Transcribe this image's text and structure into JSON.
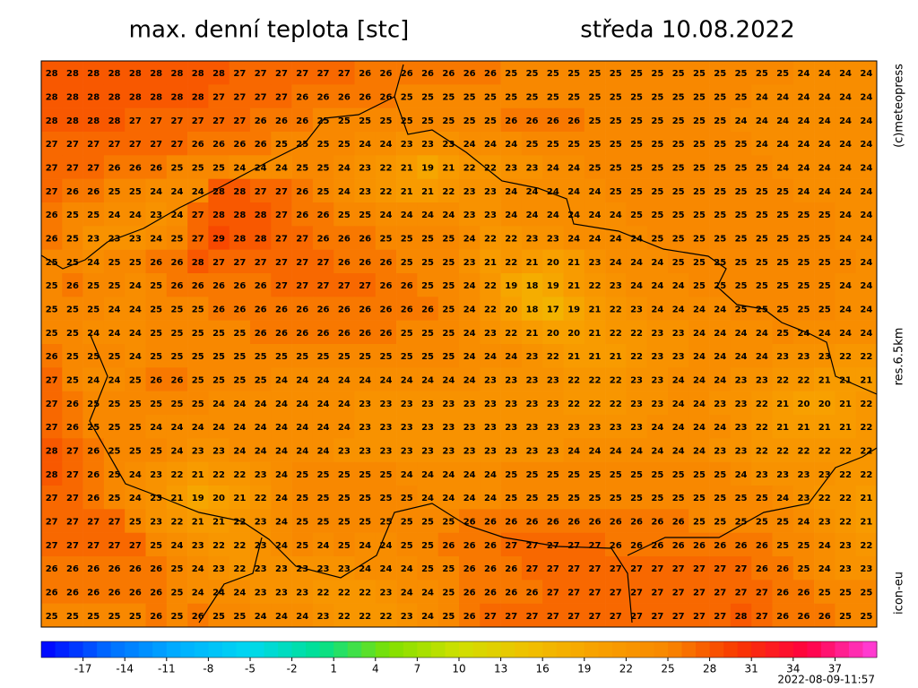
{
  "header": {
    "title": "max. denní teplota [stc]",
    "date": "středa 10.08.2022"
  },
  "side": {
    "copyright": "(c)meteopress",
    "resolution": "res.6.5km",
    "model": "icon-eu"
  },
  "timestamp": "2022-08-09-11:57",
  "colorbar": {
    "range": [
      -20,
      40
    ],
    "ticks": [
      -17,
      -14,
      -11,
      -8,
      -5,
      -2,
      1,
      4,
      7,
      10,
      13,
      16,
      19,
      22,
      25,
      28,
      31,
      34,
      37
    ],
    "colors": [
      "#0000ff",
      "#0070ff",
      "#00b0ff",
      "#00d8f0",
      "#00e090",
      "#80e000",
      "#d0e000",
      "#f0c000",
      "#f8a000",
      "#f88800",
      "#f83800",
      "#ff0040",
      "#ff40e0"
    ]
  },
  "map": {
    "rows": [
      [
        28,
        28,
        28,
        28,
        28,
        28,
        28,
        28,
        28,
        27,
        27,
        27,
        27,
        27,
        27,
        26,
        26,
        26,
        26,
        26,
        26,
        26,
        25,
        25,
        25,
        25,
        25,
        25,
        25,
        25,
        25,
        25,
        25,
        25,
        25,
        25,
        24,
        24,
        24,
        24
      ],
      [
        28,
        28,
        28,
        28,
        28,
        28,
        28,
        28,
        27,
        27,
        27,
        27,
        26,
        26,
        26,
        26,
        26,
        25,
        25,
        25,
        25,
        25,
        25,
        25,
        25,
        25,
        25,
        25,
        25,
        25,
        25,
        25,
        25,
        25,
        24,
        24,
        24,
        24,
        24,
        24
      ],
      [
        28,
        28,
        28,
        28,
        27,
        27,
        27,
        27,
        27,
        27,
        26,
        26,
        26,
        25,
        25,
        25,
        25,
        25,
        25,
        25,
        25,
        25,
        26,
        26,
        26,
        26,
        25,
        25,
        25,
        25,
        25,
        25,
        25,
        24,
        24,
        24,
        24,
        24,
        24,
        24
      ],
      [
        27,
        27,
        27,
        27,
        27,
        27,
        27,
        26,
        26,
        26,
        26,
        25,
        25,
        25,
        25,
        24,
        24,
        23,
        23,
        23,
        24,
        24,
        24,
        25,
        25,
        25,
        25,
        25,
        25,
        25,
        25,
        25,
        25,
        25,
        24,
        24,
        24,
        24,
        24,
        24
      ],
      [
        27,
        27,
        27,
        26,
        26,
        26,
        25,
        25,
        25,
        24,
        24,
        24,
        25,
        25,
        24,
        23,
        22,
        21,
        19,
        21,
        22,
        22,
        23,
        23,
        24,
        24,
        25,
        25,
        25,
        25,
        25,
        25,
        25,
        25,
        25,
        24,
        24,
        24,
        24,
        24
      ],
      [
        27,
        26,
        26,
        25,
        25,
        24,
        24,
        24,
        28,
        28,
        27,
        27,
        26,
        25,
        24,
        23,
        22,
        21,
        21,
        22,
        23,
        23,
        24,
        24,
        24,
        24,
        24,
        25,
        25,
        25,
        25,
        25,
        25,
        25,
        25,
        25,
        24,
        24,
        24,
        24
      ],
      [
        26,
        25,
        25,
        24,
        24,
        23,
        24,
        27,
        28,
        28,
        28,
        27,
        26,
        26,
        25,
        25,
        24,
        24,
        24,
        24,
        23,
        23,
        24,
        24,
        24,
        24,
        24,
        24,
        25,
        25,
        25,
        25,
        25,
        25,
        25,
        25,
        25,
        25,
        24,
        24
      ],
      [
        26,
        25,
        23,
        23,
        23,
        24,
        25,
        27,
        29,
        28,
        28,
        27,
        27,
        26,
        26,
        26,
        25,
        25,
        25,
        25,
        24,
        22,
        22,
        23,
        23,
        24,
        24,
        24,
        24,
        25,
        25,
        25,
        25,
        25,
        25,
        25,
        25,
        25,
        24,
        24
      ],
      [
        25,
        25,
        24,
        25,
        25,
        26,
        26,
        28,
        27,
        27,
        27,
        27,
        27,
        27,
        26,
        26,
        26,
        25,
        25,
        25,
        23,
        21,
        22,
        21,
        20,
        21,
        23,
        24,
        24,
        24,
        25,
        25,
        25,
        25,
        25,
        25,
        25,
        25,
        25,
        24
      ],
      [
        25,
        26,
        25,
        25,
        24,
        25,
        26,
        26,
        26,
        26,
        26,
        27,
        27,
        27,
        27,
        27,
        26,
        26,
        25,
        25,
        24,
        22,
        19,
        18,
        19,
        21,
        22,
        23,
        24,
        24,
        24,
        25,
        25,
        25,
        25,
        25,
        25,
        25,
        24,
        24
      ],
      [
        25,
        25,
        25,
        24,
        24,
        25,
        25,
        25,
        26,
        26,
        26,
        26,
        26,
        26,
        26,
        26,
        26,
        26,
        26,
        25,
        24,
        22,
        20,
        18,
        17,
        19,
        21,
        22,
        23,
        24,
        24,
        24,
        24,
        25,
        25,
        25,
        25,
        25,
        24,
        24
      ],
      [
        25,
        25,
        24,
        24,
        24,
        25,
        25,
        25,
        25,
        25,
        26,
        26,
        26,
        26,
        26,
        26,
        26,
        25,
        25,
        25,
        24,
        23,
        22,
        21,
        20,
        20,
        21,
        22,
        22,
        23,
        23,
        24,
        24,
        24,
        24,
        25,
        24,
        24,
        24,
        24
      ],
      [
        26,
        25,
        25,
        25,
        24,
        25,
        25,
        25,
        25,
        25,
        25,
        25,
        25,
        25,
        25,
        25,
        25,
        25,
        25,
        25,
        24,
        24,
        24,
        23,
        22,
        21,
        21,
        21,
        22,
        23,
        23,
        24,
        24,
        24,
        24,
        23,
        23,
        23,
        22,
        22
      ],
      [
        27,
        25,
        24,
        24,
        25,
        26,
        26,
        25,
        25,
        25,
        25,
        24,
        24,
        24,
        24,
        24,
        24,
        24,
        24,
        24,
        24,
        23,
        23,
        23,
        23,
        22,
        22,
        22,
        23,
        23,
        24,
        24,
        24,
        23,
        23,
        22,
        22,
        21,
        21,
        21
      ],
      [
        27,
        26,
        25,
        25,
        25,
        25,
        25,
        25,
        24,
        24,
        24,
        24,
        24,
        24,
        24,
        23,
        23,
        23,
        23,
        23,
        23,
        23,
        23,
        23,
        23,
        22,
        22,
        22,
        23,
        23,
        24,
        24,
        23,
        23,
        22,
        21,
        20,
        20,
        21,
        22
      ],
      [
        27,
        26,
        25,
        25,
        25,
        24,
        24,
        24,
        24,
        24,
        24,
        24,
        24,
        24,
        24,
        23,
        23,
        23,
        23,
        23,
        23,
        23,
        23,
        23,
        23,
        23,
        23,
        23,
        23,
        24,
        24,
        24,
        24,
        23,
        22,
        21,
        21,
        21,
        21,
        22
      ],
      [
        28,
        27,
        26,
        25,
        25,
        25,
        24,
        23,
        23,
        24,
        24,
        24,
        24,
        24,
        23,
        23,
        23,
        23,
        23,
        23,
        23,
        23,
        23,
        23,
        23,
        24,
        24,
        24,
        24,
        24,
        24,
        24,
        23,
        23,
        22,
        22,
        22,
        22,
        22,
        22
      ],
      [
        28,
        27,
        26,
        25,
        24,
        23,
        22,
        21,
        22,
        22,
        23,
        24,
        25,
        25,
        25,
        25,
        25,
        24,
        24,
        24,
        24,
        24,
        25,
        25,
        25,
        25,
        25,
        25,
        25,
        25,
        25,
        25,
        25,
        24,
        23,
        23,
        23,
        23,
        22,
        22
      ],
      [
        27,
        27,
        26,
        25,
        24,
        23,
        21,
        19,
        20,
        21,
        22,
        24,
        25,
        25,
        25,
        25,
        25,
        25,
        24,
        24,
        24,
        24,
        25,
        25,
        25,
        25,
        25,
        25,
        25,
        25,
        25,
        25,
        25,
        25,
        25,
        24,
        23,
        22,
        22,
        21
      ],
      [
        27,
        27,
        27,
        27,
        25,
        23,
        22,
        21,
        21,
        22,
        23,
        24,
        25,
        25,
        25,
        25,
        25,
        25,
        25,
        25,
        26,
        26,
        26,
        26,
        26,
        26,
        26,
        26,
        26,
        26,
        26,
        25,
        25,
        25,
        25,
        25,
        24,
        23,
        22,
        21
      ],
      [
        27,
        27,
        27,
        27,
        27,
        25,
        24,
        23,
        22,
        22,
        23,
        24,
        25,
        24,
        25,
        24,
        24,
        25,
        25,
        26,
        26,
        26,
        27,
        27,
        27,
        27,
        27,
        26,
        26,
        26,
        26,
        26,
        26,
        26,
        26,
        25,
        25,
        24,
        23,
        22
      ],
      [
        26,
        26,
        26,
        26,
        26,
        26,
        25,
        24,
        23,
        22,
        23,
        23,
        23,
        23,
        23,
        24,
        24,
        24,
        25,
        25,
        26,
        26,
        26,
        27,
        27,
        27,
        27,
        27,
        27,
        27,
        27,
        27,
        27,
        27,
        26,
        26,
        25,
        24,
        23,
        23
      ],
      [
        26,
        26,
        26,
        26,
        26,
        26,
        25,
        24,
        24,
        24,
        23,
        23,
        23,
        22,
        22,
        22,
        23,
        24,
        24,
        25,
        26,
        26,
        26,
        26,
        27,
        27,
        27,
        27,
        27,
        27,
        27,
        27,
        27,
        27,
        27,
        26,
        26,
        25,
        25,
        25
      ],
      [
        25,
        25,
        25,
        25,
        25,
        26,
        25,
        26,
        25,
        25,
        24,
        24,
        24,
        23,
        22,
        22,
        22,
        23,
        24,
        25,
        26,
        27,
        27,
        27,
        27,
        27,
        27,
        27,
        27,
        27,
        27,
        27,
        27,
        28,
        27,
        26,
        26,
        26,
        25,
        25
      ]
    ]
  }
}
